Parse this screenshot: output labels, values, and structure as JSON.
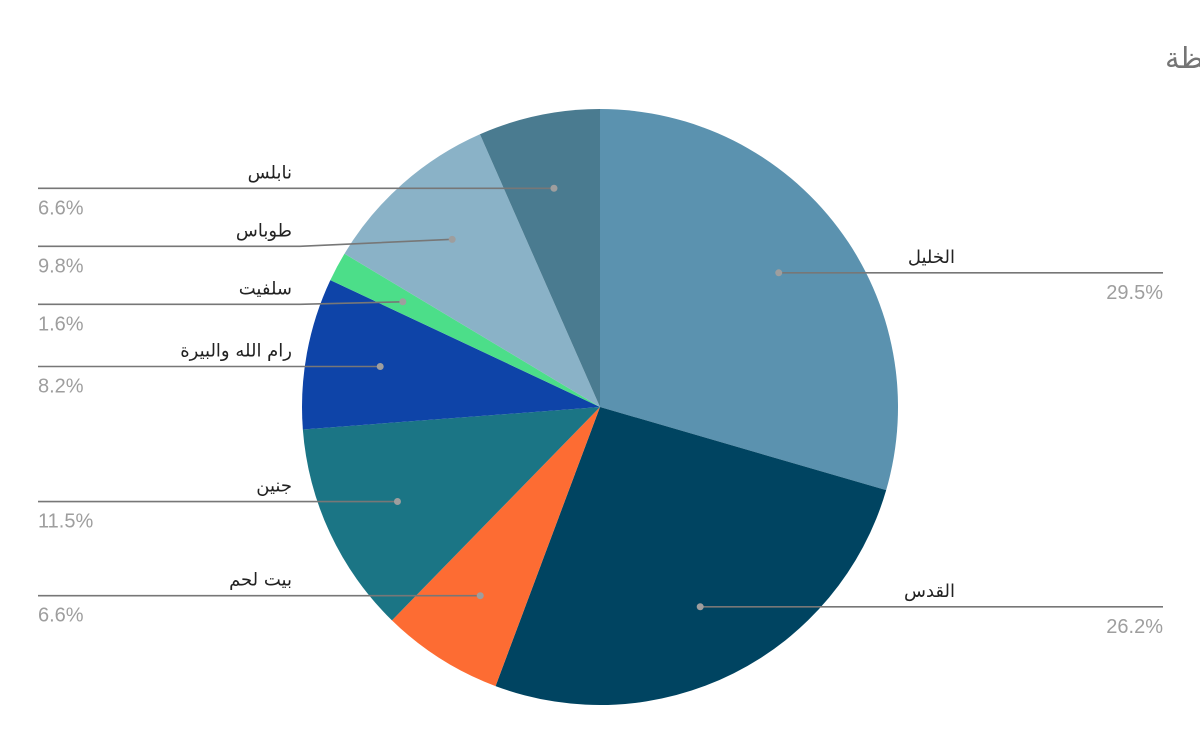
{
  "chart_data": {
    "type": "pie",
    "title": "توزيع المنشآت الخاصة المهدومة حسب المحافظة",
    "legend": "none",
    "slices": [
      {
        "label": "الخليل",
        "value": 29.5,
        "pct": "29.5%",
        "color": "#5b92af"
      },
      {
        "label": "القدس",
        "value": 26.2,
        "pct": "26.2%",
        "color": "#004461"
      },
      {
        "label": "بيت لحم",
        "value": 6.6,
        "pct": "6.6%",
        "color": "#fd6c33"
      },
      {
        "label": "جنين",
        "value": 11.5,
        "pct": "11.5%",
        "color": "#1b7585"
      },
      {
        "label": "رام الله والبيرة",
        "value": 8.2,
        "pct": "8.2%",
        "color": "#0e44a8"
      },
      {
        "label": "سلفيت",
        "value": 1.6,
        "pct": "1.6%",
        "color": "#4cde89"
      },
      {
        "label": "طوباس",
        "value": 9.8,
        "pct": "9.8%",
        "color": "#8ab2c7"
      },
      {
        "label": "نابلس",
        "value": 6.6,
        "pct": "6.6%",
        "color": "#4a7b90"
      }
    ]
  }
}
